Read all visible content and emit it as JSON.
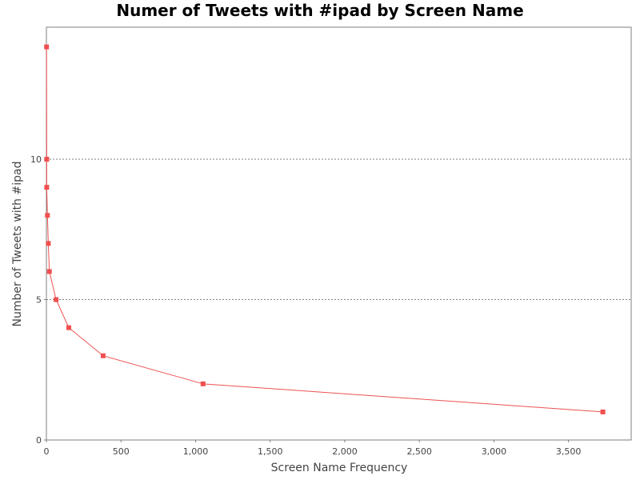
{
  "chart_data": {
    "type": "line",
    "title": "Numer of Tweets with #ipad by Screen Name",
    "xlabel": "Screen Name Frequency",
    "ylabel": "Number of Tweets with #ipad",
    "xlim": [
      0,
      3920
    ],
    "ylim": [
      0,
      14.7
    ],
    "xticks": [
      {
        "value": 0,
        "label": "0"
      },
      {
        "value": 500,
        "label": "500"
      },
      {
        "value": 1000,
        "label": "1,000"
      },
      {
        "value": 1500,
        "label": "1,500"
      },
      {
        "value": 2000,
        "label": "2,000"
      },
      {
        "value": 2500,
        "label": "2,500"
      },
      {
        "value": 3000,
        "label": "3,000"
      },
      {
        "value": 3500,
        "label": "3,500"
      }
    ],
    "yticks": [
      {
        "value": 0,
        "label": "0"
      },
      {
        "value": 5,
        "label": "5"
      },
      {
        "value": 10,
        "label": "10"
      }
    ],
    "grid": "horizontal-dotted",
    "series": [
      {
        "color": "#f05050",
        "marker": "square",
        "points": [
          {
            "x": 1,
            "y": 14
          },
          {
            "x": 2,
            "y": 10
          },
          {
            "x": 2,
            "y": 9
          },
          {
            "x": 7,
            "y": 8
          },
          {
            "x": 13,
            "y": 7
          },
          {
            "x": 20,
            "y": 6
          },
          {
            "x": 65,
            "y": 5
          },
          {
            "x": 150,
            "y": 4
          },
          {
            "x": 380,
            "y": 3
          },
          {
            "x": 1050,
            "y": 2
          },
          {
            "x": 3730,
            "y": 1
          }
        ]
      }
    ]
  }
}
